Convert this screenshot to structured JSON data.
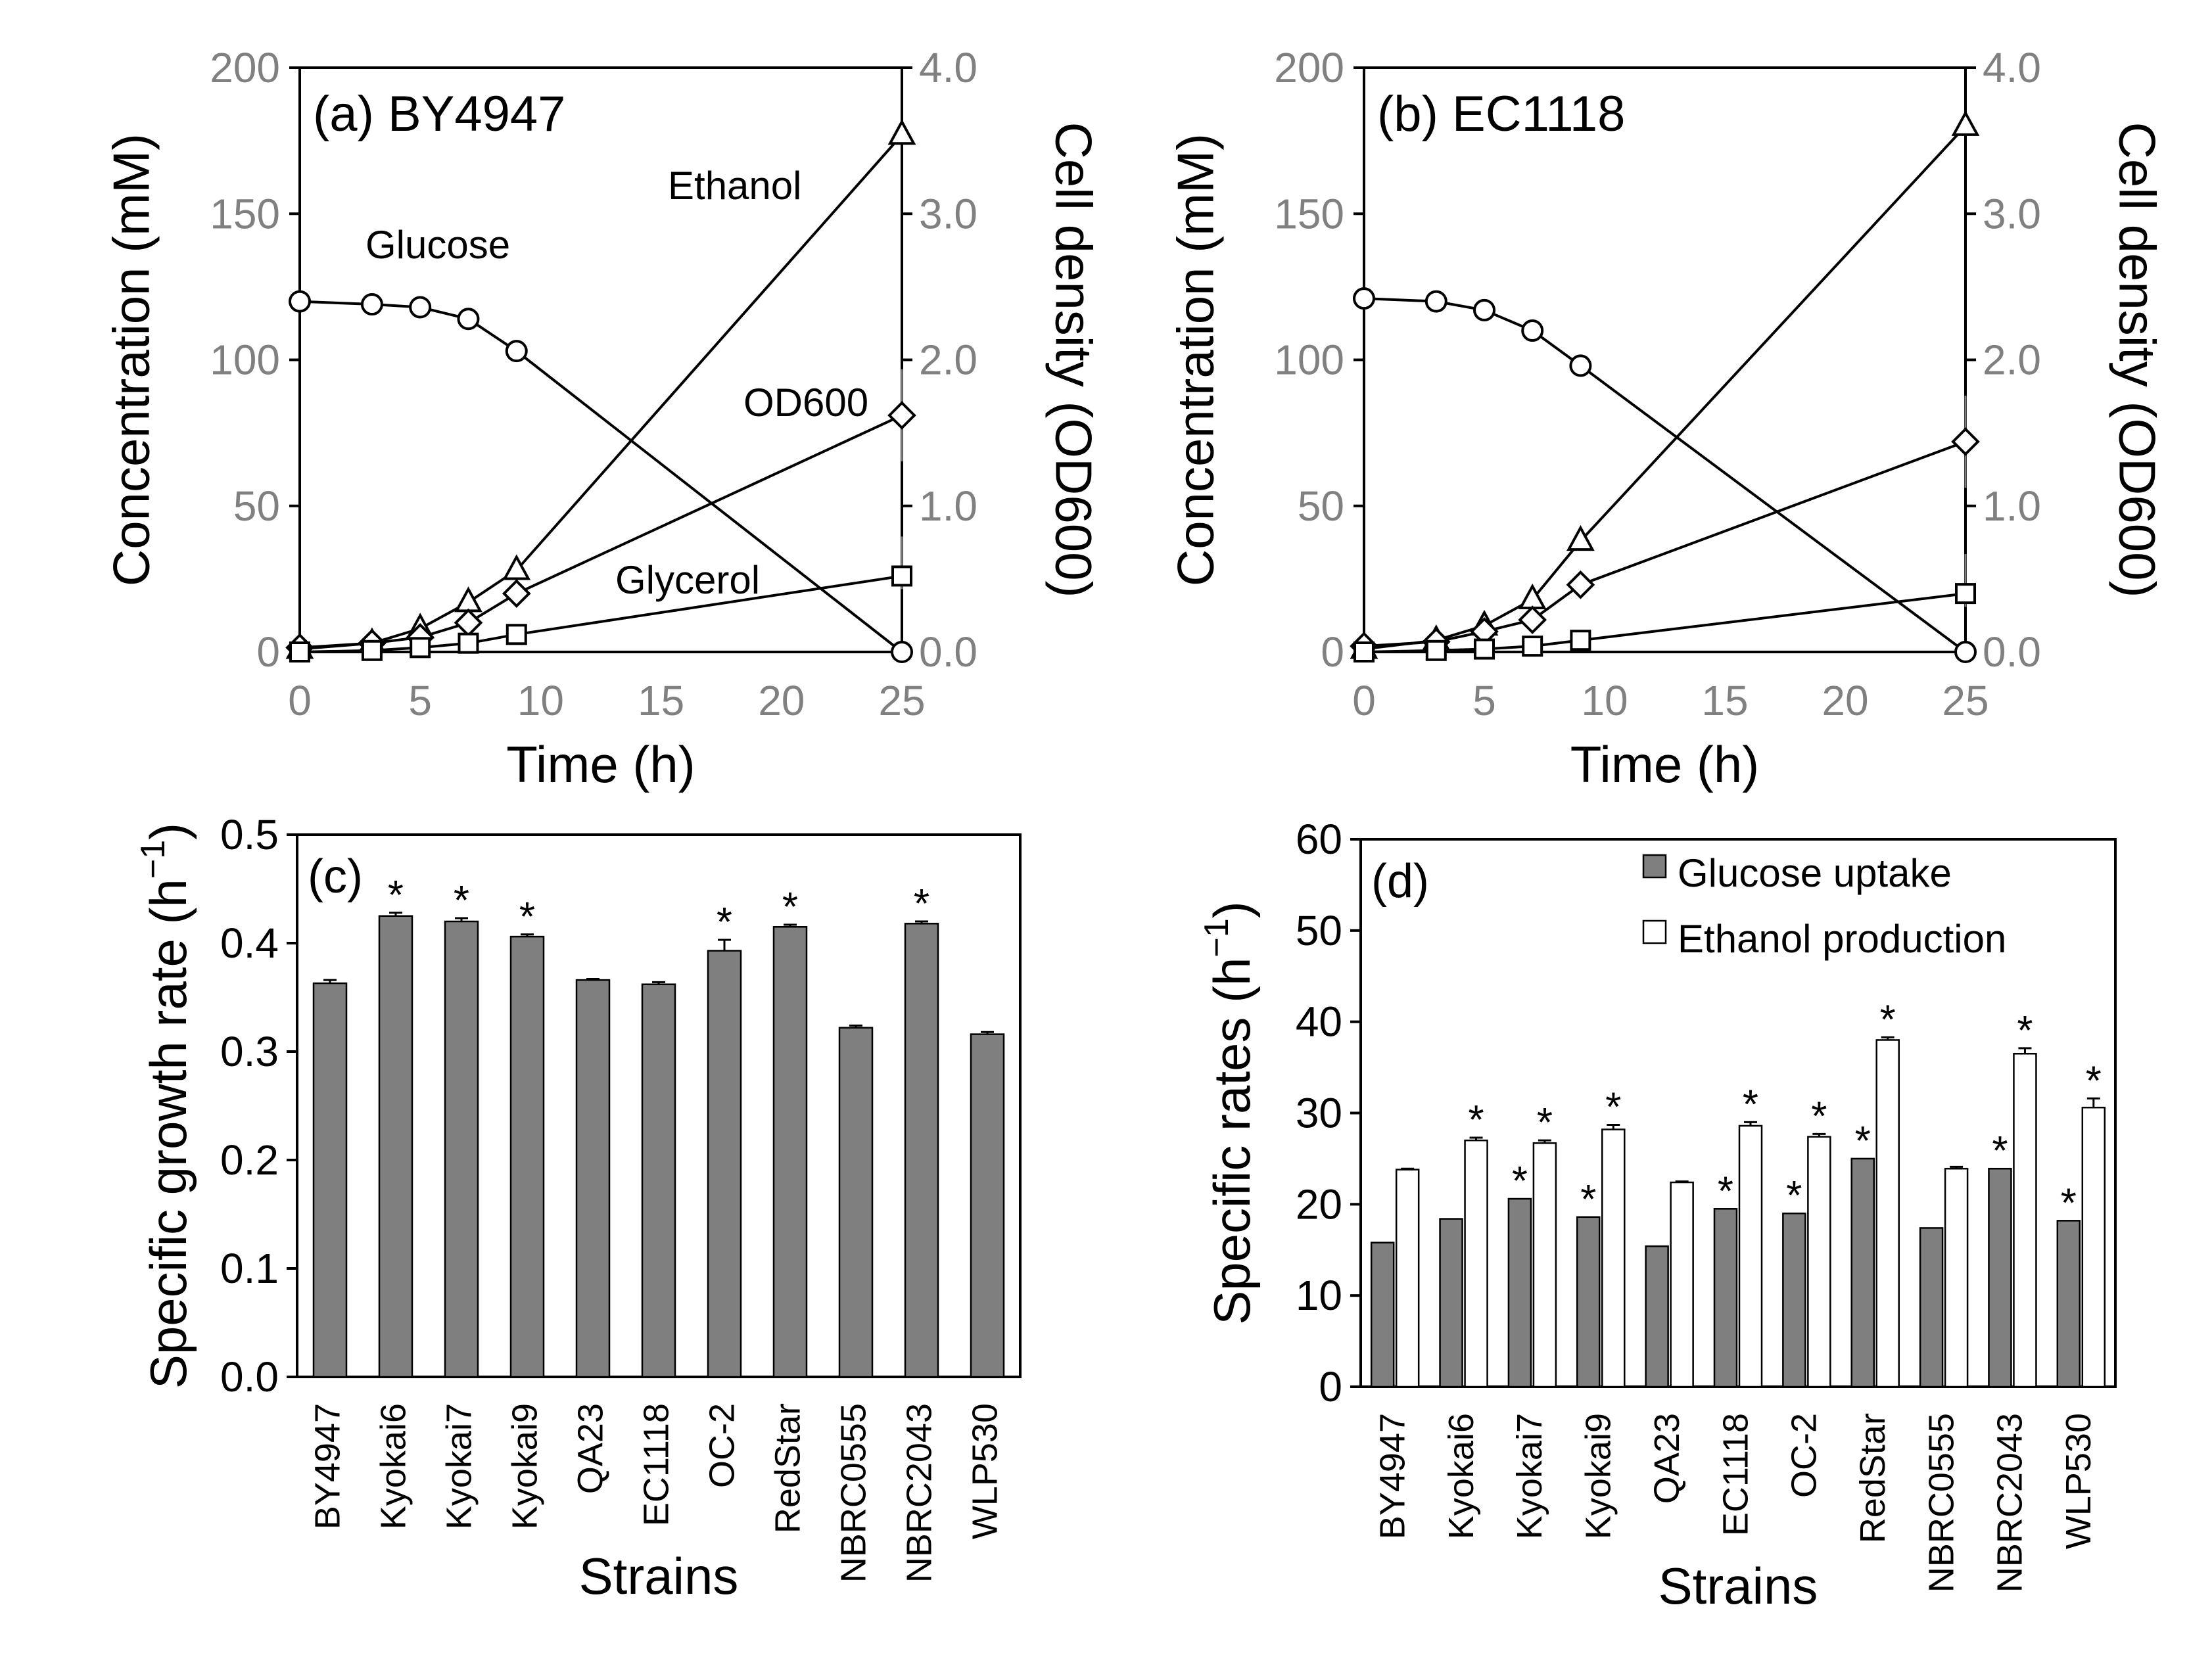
{
  "colors": {
    "axis": "#000000",
    "tick_text_gray": "#808080",
    "bar_gray": "#7f7f7f",
    "bar_white": "#ffffff",
    "marker_fill": "#ffffff"
  },
  "chart_data": [
    {
      "panel": "a",
      "type": "line",
      "title": "(a) BY4947",
      "xlabel": "Time (h)",
      "ylabel": "Concentration (mM)",
      "y2label": "Cell density (OD600)",
      "xlim": [
        0,
        25
      ],
      "ylim": [
        0,
        200
      ],
      "y2lim": [
        0,
        4
      ],
      "xticks": [
        "0",
        "5",
        "10",
        "15",
        "20",
        "25"
      ],
      "yticks": [
        "0",
        "50",
        "100",
        "150",
        "200"
      ],
      "y2ticks": [
        "0.0",
        "1.0",
        "2.0",
        "3.0",
        "4.0"
      ],
      "series": [
        {
          "name": "Glucose",
          "axis": "left",
          "marker": "circle",
          "x": [
            0,
            3,
            5,
            7,
            9,
            25
          ],
          "values": [
            120,
            119,
            118,
            114,
            103,
            0
          ]
        },
        {
          "name": "Ethanol",
          "axis": "left",
          "marker": "triangle",
          "x": [
            0,
            3,
            5,
            7,
            9,
            25
          ],
          "values": [
            1,
            3,
            8,
            17,
            28,
            177
          ]
        },
        {
          "name": "OD600",
          "axis": "right",
          "marker": "diamond",
          "x": [
            0,
            3,
            5,
            7,
            9,
            25
          ],
          "values": [
            0.03,
            0.06,
            0.1,
            0.2,
            0.4,
            1.62
          ]
        },
        {
          "name": "Glycerol",
          "axis": "left",
          "marker": "square",
          "x": [
            0,
            3,
            5,
            7,
            9,
            25
          ],
          "values": [
            0,
            0.5,
            1.5,
            3,
            6,
            26
          ]
        }
      ],
      "annotations": [
        "Glucose",
        "Ethanol",
        "OD600",
        "Glycerol"
      ]
    },
    {
      "panel": "b",
      "type": "line",
      "title": "(b) EC1118",
      "xlabel": "Time (h)",
      "ylabel": "Concentration (mM)",
      "y2label": "Cell density (OD600)",
      "xlim": [
        0,
        25
      ],
      "ylim": [
        0,
        200
      ],
      "y2lim": [
        0,
        4
      ],
      "xticks": [
        "0",
        "5",
        "10",
        "15",
        "20",
        "25"
      ],
      "yticks": [
        "0",
        "50",
        "100",
        "150",
        "200"
      ],
      "y2ticks": [
        "0.0",
        "1.0",
        "2.0",
        "3.0",
        "4.0"
      ],
      "series": [
        {
          "name": "Glucose",
          "axis": "left",
          "marker": "circle",
          "x": [
            0,
            3,
            5,
            7,
            9,
            25
          ],
          "values": [
            121,
            120,
            117,
            110,
            98,
            0
          ]
        },
        {
          "name": "Ethanol",
          "axis": "left",
          "marker": "triangle",
          "x": [
            0,
            3,
            5,
            7,
            9,
            25
          ],
          "values": [
            1,
            4,
            9,
            18,
            38,
            180
          ]
        },
        {
          "name": "OD600",
          "axis": "right",
          "marker": "diamond",
          "x": [
            0,
            3,
            5,
            7,
            9,
            25
          ],
          "values": [
            0.04,
            0.07,
            0.14,
            0.22,
            0.46,
            1.44
          ]
        },
        {
          "name": "Glycerol",
          "axis": "left",
          "marker": "square",
          "x": [
            0,
            3,
            5,
            7,
            9,
            25
          ],
          "values": [
            0,
            0.5,
            1,
            2,
            4,
            20
          ]
        }
      ],
      "annotations": []
    },
    {
      "panel": "c",
      "type": "bar",
      "title": "(c)",
      "xlabel": "Strains",
      "ylabel": "Specific growth rate (h",
      "ylabel_sup": "−1",
      "ylabel_end": ")",
      "ylim": [
        0,
        0.5
      ],
      "yticks": [
        "0.0",
        "0.1",
        "0.2",
        "0.3",
        "0.4",
        "0.5"
      ],
      "categories": [
        "BY4947",
        "Kyokai6",
        "Kyokai7",
        "Kyokai9",
        "QA23",
        "EC1118",
        "OC-2",
        "RedStar",
        "NBRC0555",
        "NBRC2043",
        "WLP530"
      ],
      "series": [
        {
          "name": "Specific growth rate",
          "values": [
            0.363,
            0.425,
            0.42,
            0.406,
            0.366,
            0.362,
            0.393,
            0.415,
            0.322,
            0.418,
            0.316
          ],
          "errors": [
            0.003,
            0.003,
            0.003,
            0.002,
            0.001,
            0.002,
            0.01,
            0.002,
            0.002,
            0.002,
            0.002
          ]
        }
      ],
      "significant": [
        false,
        true,
        true,
        true,
        false,
        false,
        true,
        true,
        false,
        true,
        false
      ],
      "significance_mark": "*"
    },
    {
      "panel": "d",
      "type": "bar",
      "title": "(d)",
      "xlabel": "Strains",
      "ylabel": "Specific rates (h",
      "ylabel_sup": "−1",
      "ylabel_end": ")",
      "ylim": [
        0,
        60
      ],
      "yticks": [
        "0",
        "10",
        "20",
        "30",
        "40",
        "50",
        "60"
      ],
      "categories": [
        "BY4947",
        "Kyokai6",
        "Kyokai7",
        "Kyokai9",
        "QA23",
        "EC1118",
        "OC-2",
        "RedStar",
        "NBRC0555",
        "NBRC2043",
        "WLP530"
      ],
      "series": [
        {
          "name": "Glucose uptake",
          "fill": "gray",
          "values": [
            15.8,
            18.4,
            20.6,
            18.6,
            15.4,
            19.5,
            19.0,
            25.0,
            17.4,
            23.9,
            18.2
          ],
          "significant": [
            false,
            false,
            true,
            true,
            false,
            true,
            true,
            true,
            false,
            true,
            true
          ]
        },
        {
          "name": "Ethanol production",
          "fill": "white",
          "values": [
            23.8,
            27.0,
            26.7,
            28.2,
            22.4,
            28.6,
            27.4,
            38.0,
            23.9,
            36.5,
            30.6
          ],
          "errors": [
            0.1,
            0.3,
            0.3,
            0.5,
            0.1,
            0.4,
            0.3,
            0.3,
            0.2,
            0.6,
            1.0
          ],
          "significant": [
            false,
            true,
            true,
            true,
            false,
            true,
            true,
            true,
            false,
            true,
            true
          ]
        }
      ],
      "legend": [
        "Glucose uptake",
        "Ethanol production"
      ],
      "legend_position": "top-right",
      "significance_mark": "*"
    }
  ]
}
